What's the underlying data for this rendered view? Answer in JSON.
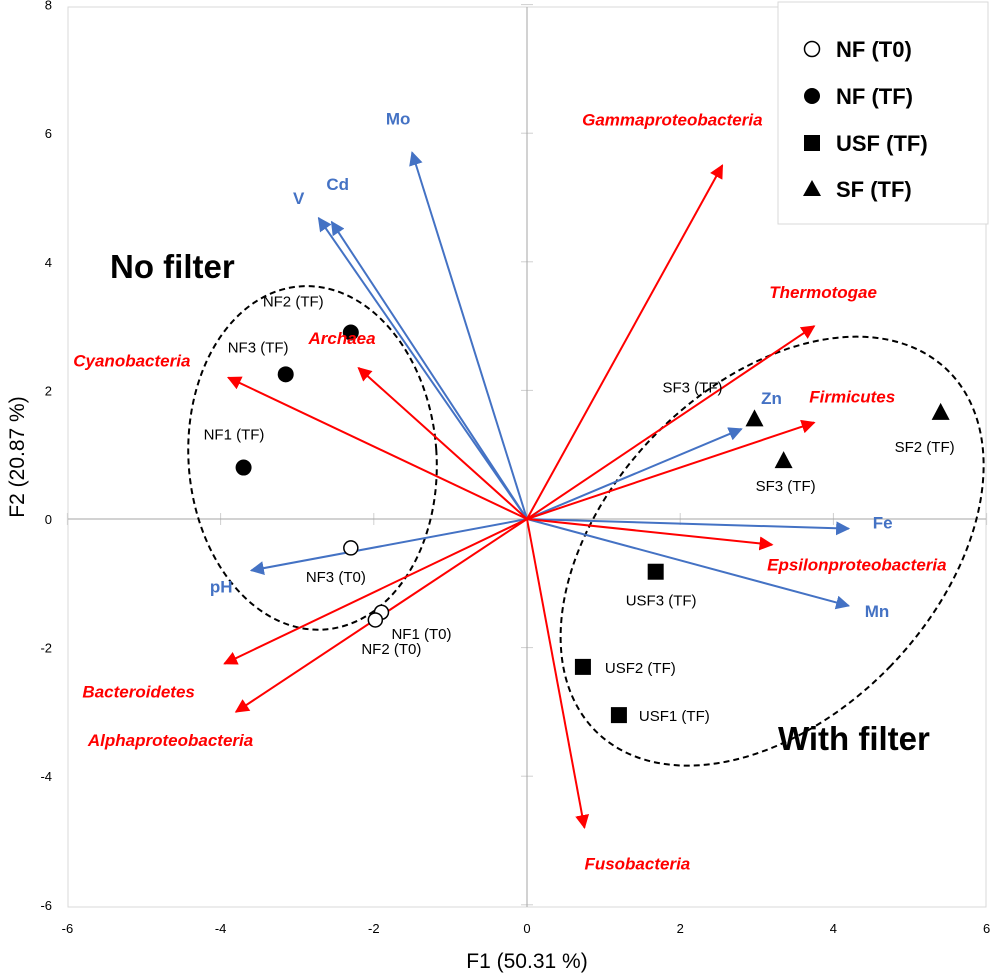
{
  "chart_data": {
    "type": "scatter",
    "xlabel": "F1 (50.31 %)",
    "ylabel": "F2 (20.87 %)",
    "xlim": [
      -6,
      6
    ],
    "ylim": [
      -6,
      8
    ],
    "x_ticks": [
      "-6",
      "-4",
      "-2",
      "0",
      "2",
      "4",
      "6"
    ],
    "y_ticks": [
      "-6",
      "-4",
      "-2",
      "0",
      "2",
      "4",
      "6",
      "8"
    ],
    "colors": {
      "env": "#4472C4",
      "taxa": "#FF0000"
    },
    "legend": {
      "placement": "top-right",
      "entries": [
        {
          "label": "NF (T0)",
          "marker": "circle-open"
        },
        {
          "label": "NF (TF)",
          "marker": "circle"
        },
        {
          "label": "USF (TF)",
          "marker": "square"
        },
        {
          "label": "SF (TF)",
          "marker": "triangle"
        }
      ]
    },
    "points": [
      {
        "label": "NF1 (TF)",
        "x": -3.7,
        "y": 0.8,
        "marker": "circle"
      },
      {
        "label": "NF2 (TF)",
        "x": -2.3,
        "y": 2.9,
        "marker": "circle"
      },
      {
        "label": "NF3 (TF)",
        "x": -3.15,
        "y": 2.25,
        "marker": "circle"
      },
      {
        "label": "NF3 (T0)",
        "x": -2.3,
        "y": -0.45,
        "marker": "circle-open"
      },
      {
        "label": "NF1 (T0)",
        "x": -1.9,
        "y": -1.45,
        "marker": "circle-open"
      },
      {
        "label": "NF2 (T0)",
        "x": -1.98,
        "y": -1.57,
        "marker": "circle-open"
      },
      {
        "label": "USF3 (TF)",
        "x": 1.68,
        "y": -0.82,
        "marker": "square"
      },
      {
        "label": "USF2 (TF)",
        "x": 0.73,
        "y": -2.3,
        "marker": "square"
      },
      {
        "label": "USF1 (TF)",
        "x": 1.2,
        "y": -3.05,
        "marker": "square"
      },
      {
        "label": "SF3 (TF)",
        "x": 2.97,
        "y": 1.55,
        "marker": "triangle"
      },
      {
        "label": "SF3 (TF)",
        "x": 3.35,
        "y": 0.9,
        "marker": "triangle"
      },
      {
        "label": "SF2 (TF)",
        "x": 5.4,
        "y": 1.65,
        "marker": "triangle"
      }
    ],
    "vectors": [
      {
        "label": "Mo",
        "x": -1.5,
        "y": 5.7,
        "group": "env"
      },
      {
        "label": "Cd",
        "x": -2.55,
        "y": 4.62,
        "group": "env"
      },
      {
        "label": "V",
        "x": -2.72,
        "y": 4.68,
        "group": "env"
      },
      {
        "label": "pH",
        "x": -3.6,
        "y": -0.8,
        "group": "env"
      },
      {
        "label": "Zn",
        "x": 2.8,
        "y": 1.4,
        "group": "env"
      },
      {
        "label": "Fe",
        "x": 4.2,
        "y": -0.15,
        "group": "env"
      },
      {
        "label": "Mn",
        "x": 4.2,
        "y": -1.35,
        "group": "env"
      },
      {
        "label": "Gammaproteobacteria",
        "x": 2.55,
        "y": 5.5,
        "group": "taxa"
      },
      {
        "label": "Thermotogae",
        "x": 3.75,
        "y": 3.0,
        "group": "taxa"
      },
      {
        "label": "Firmicutes",
        "x": 3.75,
        "y": 1.5,
        "group": "taxa"
      },
      {
        "label": "Epsilonproteobacteria",
        "x": 3.2,
        "y": -0.4,
        "group": "taxa"
      },
      {
        "label": "Fusobacteria",
        "x": 0.75,
        "y": -4.8,
        "group": "taxa"
      },
      {
        "label": "Cyanobacteria",
        "x": -3.9,
        "y": 2.2,
        "group": "taxa"
      },
      {
        "label": "Archaea",
        "x": -2.2,
        "y": 2.35,
        "group": "taxa"
      },
      {
        "label": "Bacteroidetes",
        "x": -3.95,
        "y": -2.25,
        "group": "taxa"
      },
      {
        "label": "Alphaproteobacteria",
        "x": -3.8,
        "y": -3.0,
        "group": "taxa"
      }
    ],
    "annotations": [
      "No filter",
      "With filter"
    ]
  }
}
